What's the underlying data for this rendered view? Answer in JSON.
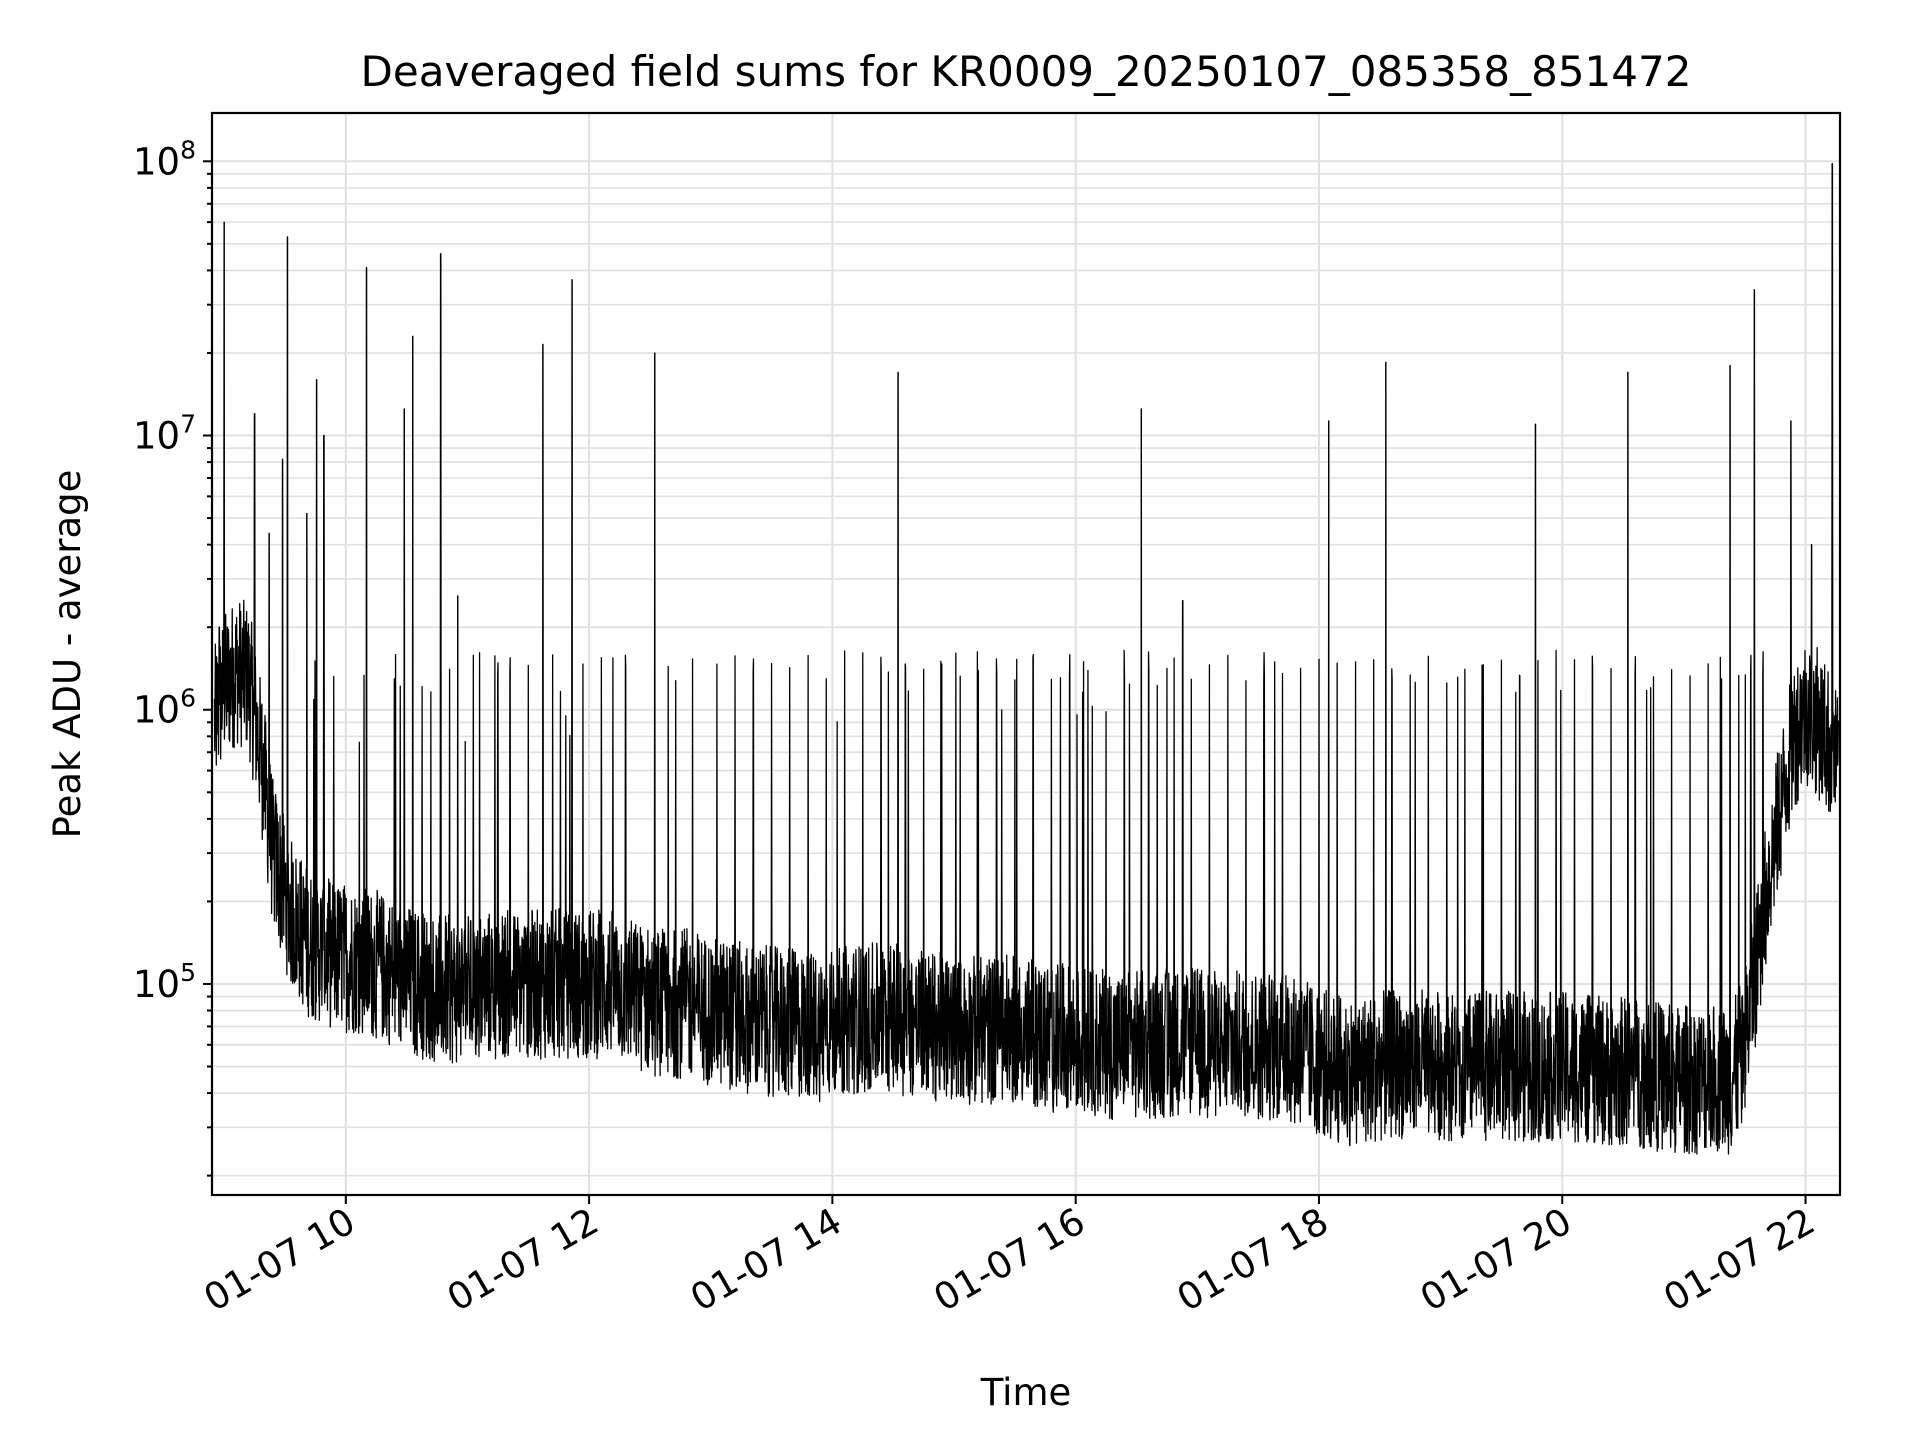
{
  "chart_data": {
    "type": "line",
    "title": "Deaveraged field sums for KR0009_20250107_085358_851472",
    "xlabel": "Time",
    "ylabel": "Peak ADU - average",
    "yscale": "log",
    "xlim": [
      "01-07 08:54",
      "01-07 22:17"
    ],
    "ylim": [
      17000,
      150000000
    ],
    "grid": true,
    "legend": "none",
    "colors": {
      "line": "#000000",
      "grid": "#e0e0e0",
      "frame": "#000000"
    },
    "x_ticks": [
      "01-07 10",
      "01-07 12",
      "01-07 14",
      "01-07 16",
      "01-07 18",
      "01-07 20",
      "01-07 22"
    ],
    "x_tick_hours": [
      10,
      12,
      14,
      16,
      18,
      20,
      22
    ],
    "y_ticks": [
      {
        "value": 100000,
        "base": "10",
        "exp": "5"
      },
      {
        "value": 1000000,
        "base": "10",
        "exp": "6"
      },
      {
        "value": 10000000,
        "base": "10",
        "exp": "7"
      },
      {
        "value": 100000000,
        "base": "10",
        "exp": "8"
      }
    ],
    "series": [
      {
        "x_hours": [
          8.92,
          9.0,
          9.1,
          9.2,
          9.3,
          9.4,
          9.55,
          9.7,
          9.85,
          10.0,
          10.2,
          10.4,
          10.6,
          10.8,
          11.0,
          11.2,
          11.4,
          11.6,
          11.8,
          12.0,
          12.2,
          12.4,
          12.6,
          12.8,
          13.0,
          13.3,
          13.6,
          13.9,
          14.2,
          14.5,
          14.8,
          15.1,
          15.4,
          15.7,
          16.0,
          16.3,
          16.6,
          16.9,
          17.2,
          17.5,
          17.8,
          18.0,
          18.2,
          18.5,
          18.8,
          19.1,
          19.4,
          19.7,
          20.0,
          20.3,
          20.6,
          20.9,
          21.2,
          21.4,
          21.5,
          21.6,
          21.7,
          21.8,
          21.9,
          22.0,
          22.1,
          22.2,
          22.27
        ],
        "baseline": [
          900000,
          1200000,
          1400000,
          1300000,
          700000,
          300000,
          180000,
          140000,
          130000,
          125000,
          120000,
          110000,
          100000,
          95000,
          95000,
          100000,
          100000,
          100000,
          100000,
          100000,
          100000,
          90000,
          85000,
          85000,
          80000,
          75000,
          72000,
          70000,
          75000,
          75000,
          70000,
          68000,
          68000,
          65000,
          62000,
          60000,
          60000,
          62000,
          60000,
          60000,
          58000,
          52000,
          48000,
          50000,
          52000,
          50000,
          50000,
          50000,
          50000,
          48000,
          48000,
          45000,
          45000,
          45000,
          60000,
          120000,
          250000,
          450000,
          800000,
          1000000,
          900000,
          750000,
          600000
        ],
        "spikes": [
          {
            "x_hours": 9.0,
            "y": 60000000
          },
          {
            "x_hours": 8.96,
            "y": 2000000
          },
          {
            "x_hours": 9.25,
            "y": 12000000
          },
          {
            "x_hours": 9.37,
            "y": 4400000
          },
          {
            "x_hours": 9.52,
            "y": 53000000
          },
          {
            "x_hours": 9.48,
            "y": 8200000
          },
          {
            "x_hours": 9.68,
            "y": 5200000
          },
          {
            "x_hours": 9.76,
            "y": 16000000
          },
          {
            "x_hours": 9.82,
            "y": 10000000
          },
          {
            "x_hours": 10.17,
            "y": 41000000
          },
          {
            "x_hours": 10.48,
            "y": 12500000
          },
          {
            "x_hours": 10.55,
            "y": 23000000
          },
          {
            "x_hours": 10.78,
            "y": 46000000
          },
          {
            "x_hours": 10.92,
            "y": 2600000
          },
          {
            "x_hours": 11.62,
            "y": 21500000
          },
          {
            "x_hours": 11.86,
            "y": 37000000
          },
          {
            "x_hours": 12.54,
            "y": 20000000
          },
          {
            "x_hours": 14.54,
            "y": 17000000
          },
          {
            "x_hours": 16.54,
            "y": 12500000
          },
          {
            "x_hours": 16.88,
            "y": 2500000
          },
          {
            "x_hours": 18.08,
            "y": 11300000
          },
          {
            "x_hours": 18.55,
            "y": 18500000
          },
          {
            "x_hours": 19.78,
            "y": 11000000
          },
          {
            "x_hours": 20.54,
            "y": 17000000
          },
          {
            "x_hours": 21.38,
            "y": 18000000
          },
          {
            "x_hours": 21.58,
            "y": 34000000
          },
          {
            "x_hours": 21.88,
            "y": 11300000
          },
          {
            "x_hours": 22.05,
            "y": 4000000
          },
          {
            "x_hours": 22.22,
            "y": 98000000
          }
        ],
        "burst_level": 1500000,
        "burst_level_early": 1350000,
        "burst_hours": [
          9.9,
          10.15,
          10.4,
          10.7,
          11.1,
          11.25,
          11.35,
          11.5,
          11.7,
          11.95,
          12.1,
          12.3,
          12.65,
          12.85,
          13.05,
          13.2,
          13.35,
          13.5,
          13.65,
          13.8,
          13.95,
          14.1,
          14.25,
          14.4,
          14.6,
          14.75,
          14.9,
          15.05,
          15.2,
          15.35,
          15.5,
          15.65,
          15.8,
          15.95,
          16.1,
          16.25,
          16.4,
          16.6,
          16.75,
          16.95,
          17.1,
          17.25,
          17.4,
          17.55,
          17.7,
          17.85,
          18.0,
          18.15,
          18.3,
          18.45,
          18.6,
          18.75,
          18.9,
          19.05,
          19.2,
          19.35,
          19.5,
          19.65,
          19.8,
          19.95,
          20.1,
          20.25,
          20.4,
          20.6,
          20.75,
          20.9,
          21.05,
          21.2,
          21.3,
          21.45,
          21.55,
          21.65
        ]
      }
    ]
  }
}
